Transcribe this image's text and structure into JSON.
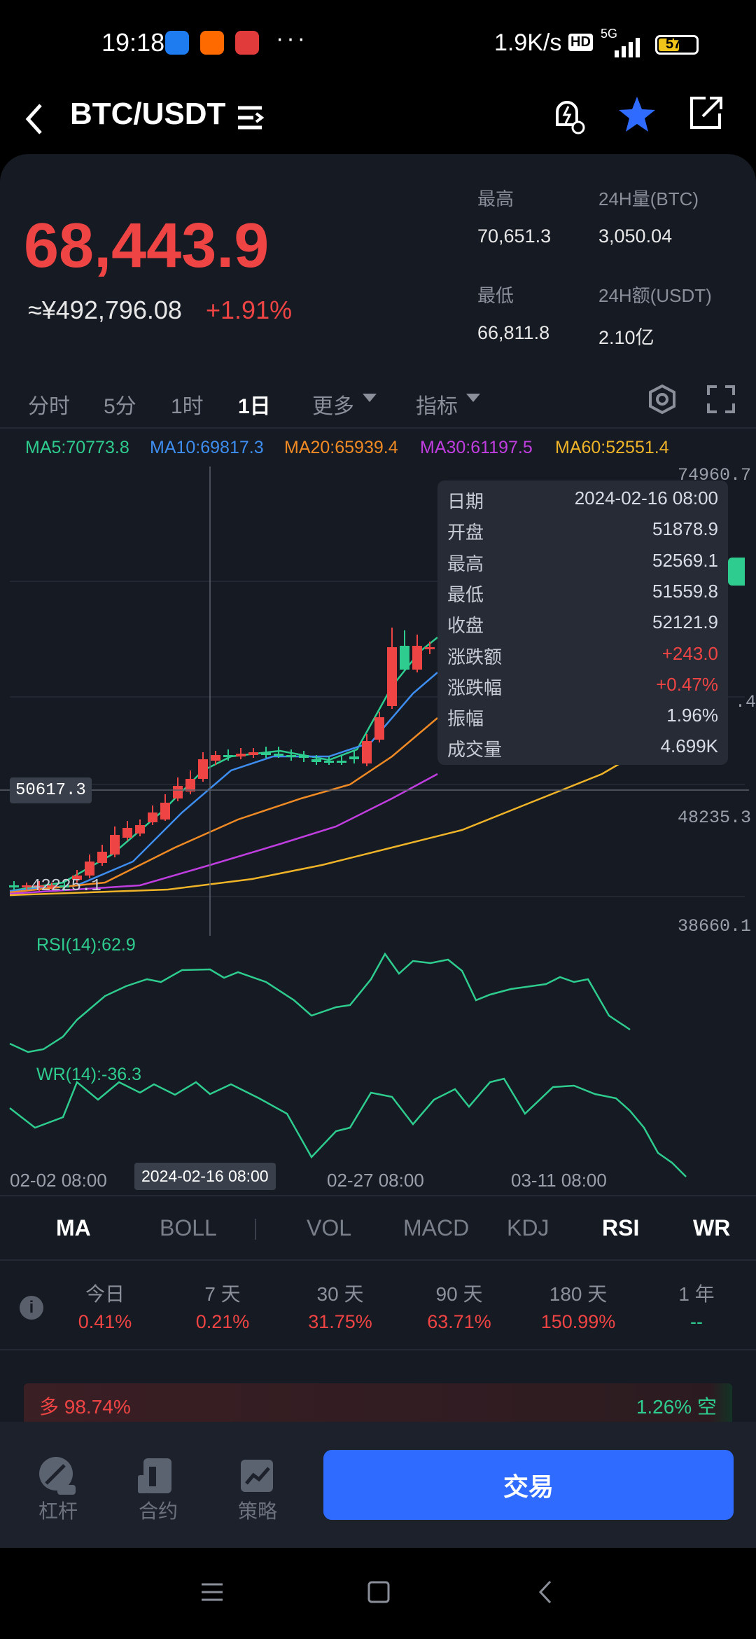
{
  "status": {
    "time": "19:18",
    "rate": "1.9K/s",
    "network": "5G",
    "battery": "57",
    "hd": "HD",
    "apps": [
      {
        "name": "app-1-icon",
        "color": "#1e7bf0"
      },
      {
        "name": "mi-app-icon",
        "color": "#ff6a00"
      },
      {
        "name": "app-3-icon",
        "color": "#e23b3b"
      }
    ],
    "more": "···"
  },
  "header": {
    "pair": "BTC/USDT"
  },
  "price": {
    "last": "68,443.9",
    "cny": "≈¥492,796.08",
    "change": "+1.91%"
  },
  "stats": {
    "high_label": "最高",
    "high_value": "70,651.3",
    "vol_label": "24H量(BTC)",
    "vol_value": "3,050.04",
    "low_label": "最低",
    "low_value": "66,811.8",
    "amt_label": "24H额(USDT)",
    "amt_value": "2.10亿"
  },
  "tabs": [
    "分时",
    "5分",
    "1时",
    "1日",
    "更多",
    "指标"
  ],
  "active_tab": "1日",
  "ma_legend": [
    {
      "label": "MA5:70773.8",
      "color": "#2ecc8f"
    },
    {
      "label": "MA10:69817.3",
      "color": "#3d8ef0"
    },
    {
      "label": "MA20:65939.4",
      "color": "#f08a24"
    },
    {
      "label": "MA30:61197.5",
      "color": "#c03ee0"
    },
    {
      "label": "MA60:52551.4",
      "color": "#f0b429"
    }
  ],
  "chart": {
    "y_labels": [
      "74960.7",
      "48235.3",
      "38660.1"
    ],
    "y_label_partial": ".4",
    "crosshair_price": "50617.3",
    "min_marker": "42225.1",
    "x_labels": [
      "02-02 08:00",
      "02-27 08:00",
      "03-11 08:00"
    ],
    "x_selected": "2024-02-16 08:00",
    "rsi_label": "RSI(14):62.9",
    "wr_label": "WR(14):-36.3",
    "colors": {
      "up": "#ef4444",
      "down": "#2ecc8f",
      "rsi": "#2ecc8f",
      "wr": "#2ecc8f"
    }
  },
  "tooltip": [
    {
      "k": "日期",
      "v": "2024-02-16 08:00",
      "c": "#d8dce4"
    },
    {
      "k": "开盘",
      "v": "51878.9",
      "c": "#d8dce4"
    },
    {
      "k": "最高",
      "v": "52569.1",
      "c": "#d8dce4"
    },
    {
      "k": "最低",
      "v": "51559.8",
      "c": "#d8dce4"
    },
    {
      "k": "收盘",
      "v": "52121.9",
      "c": "#d8dce4"
    },
    {
      "k": "涨跌额",
      "v": "+243.0",
      "c": "#ef4444"
    },
    {
      "k": "涨跌幅",
      "v": "+0.47%",
      "c": "#ef4444"
    },
    {
      "k": "振幅",
      "v": "1.96%",
      "c": "#d8dce4"
    },
    {
      "k": "成交量",
      "v": "4.699K",
      "c": "#d8dce4"
    }
  ],
  "indicator_tabs": [
    {
      "label": "MA",
      "on": true
    },
    {
      "label": "BOLL",
      "on": false
    },
    {
      "label": "VOL",
      "on": false
    },
    {
      "label": "MACD",
      "on": false
    },
    {
      "label": "KDJ",
      "on": false
    },
    {
      "label": "RSI",
      "on": true
    },
    {
      "label": "WR",
      "on": true
    }
  ],
  "performance": [
    {
      "period": "今日",
      "value": "0.41%"
    },
    {
      "period": "7 天",
      "value": "0.21%"
    },
    {
      "period": "30 天",
      "value": "31.75%"
    },
    {
      "period": "90 天",
      "value": "63.71%"
    },
    {
      "period": "180 天",
      "value": "150.99%"
    },
    {
      "period": "1 年",
      "value": "--"
    }
  ],
  "long_short": {
    "long": "多 98.74%",
    "short": "1.26% 空"
  },
  "bottom": {
    "items": [
      "杠杆",
      "合约",
      "策略"
    ],
    "trade": "交易"
  }
}
